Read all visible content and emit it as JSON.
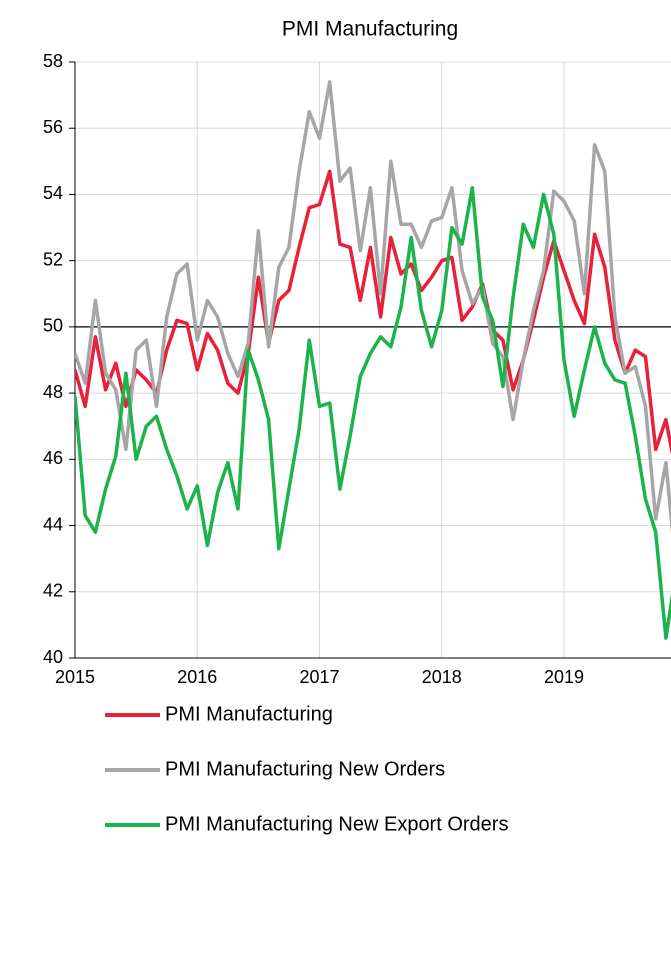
{
  "chart_data": {
    "type": "line",
    "title": "PMI Manufacturing",
    "categories": [
      "2015",
      null,
      null,
      null,
      null,
      null,
      null,
      null,
      null,
      null,
      null,
      null,
      "2016",
      null,
      null,
      null,
      null,
      null,
      null,
      null,
      null,
      null,
      null,
      null,
      "2017",
      null,
      null,
      null,
      null,
      null,
      null,
      null,
      null,
      null,
      null,
      null,
      "2018",
      null,
      null,
      null,
      null,
      null,
      null,
      null,
      null,
      null,
      null,
      null,
      "2019",
      null,
      null,
      null,
      null,
      null,
      null,
      null,
      null,
      null,
      null,
      null
    ],
    "series": [
      {
        "name": "PMI Manufacturing",
        "color": "#e8203a",
        "values": [
          48.7,
          47.6,
          49.7,
          48.1,
          48.9,
          47.6,
          48.7,
          48.4,
          48.0,
          49.3,
          50.2,
          50.1,
          48.7,
          49.8,
          49.3,
          48.3,
          48.0,
          49.2,
          51.5,
          49.5,
          50.8,
          51.1,
          52.4,
          53.6,
          53.7,
          54.7,
          52.5,
          52.4,
          50.8,
          52.4,
          50.3,
          52.7,
          51.6,
          51.9,
          51.1,
          51.5,
          52.0,
          52.1,
          50.2,
          50.6,
          51.3,
          49.9,
          49.6,
          48.1,
          49.0,
          50.2,
          51.5,
          52.6,
          51.7,
          50.8,
          50.1,
          52.8,
          51.8,
          49.6,
          48.6,
          49.3,
          49.1,
          46.3,
          47.2,
          45.6
        ]
      },
      {
        "name": "PMI Manufacturing New Orders",
        "color": "#a6a6a6",
        "values": [
          49.2,
          48.3,
          50.8,
          48.6,
          48.1,
          46.3,
          49.3,
          49.6,
          47.6,
          50.3,
          51.6,
          51.9,
          49.6,
          50.8,
          50.3,
          49.2,
          48.5,
          49.5,
          52.9,
          49.4,
          51.8,
          52.4,
          54.7,
          56.5,
          55.7,
          57.4,
          54.4,
          54.8,
          52.3,
          54.2,
          51.0,
          55.0,
          53.1,
          53.1,
          52.4,
          53.2,
          53.3,
          54.2,
          51.7,
          50.7,
          51.2,
          49.5,
          49.1,
          47.2,
          49.0,
          50.5,
          51.7,
          54.1,
          53.8,
          53.2,
          51.0,
          55.5,
          54.7,
          50.3,
          48.6,
          48.8,
          47.6,
          44.2,
          45.9,
          42.7
        ]
      },
      {
        "name": "PMI Manufacturing New Export Orders",
        "color": "#1db34c",
        "values": [
          47.9,
          44.3,
          43.8,
          45.1,
          46.1,
          48.6,
          46.0,
          47.0,
          47.3,
          46.3,
          45.5,
          44.5,
          45.2,
          43.4,
          45.0,
          45.9,
          44.5,
          49.3,
          48.4,
          47.2,
          43.3,
          45.1,
          46.9,
          49.6,
          47.6,
          47.7,
          45.1,
          46.7,
          48.5,
          49.2,
          49.7,
          49.4,
          50.6,
          52.7,
          50.5,
          49.4,
          50.5,
          53.0,
          52.5,
          54.2,
          50.9,
          50.2,
          48.2,
          50.9,
          53.1,
          52.4,
          54.0,
          52.8,
          49.0,
          47.3,
          48.7,
          50.0,
          48.9,
          48.4,
          48.3,
          46.7,
          44.8,
          43.8,
          40.6,
          42.6
        ]
      }
    ],
    "ylim": [
      40,
      58
    ],
    "yticks": [
      40,
      42,
      44,
      46,
      48,
      50,
      52,
      54,
      56,
      58
    ],
    "reference_line": 50,
    "grid": true
  }
}
